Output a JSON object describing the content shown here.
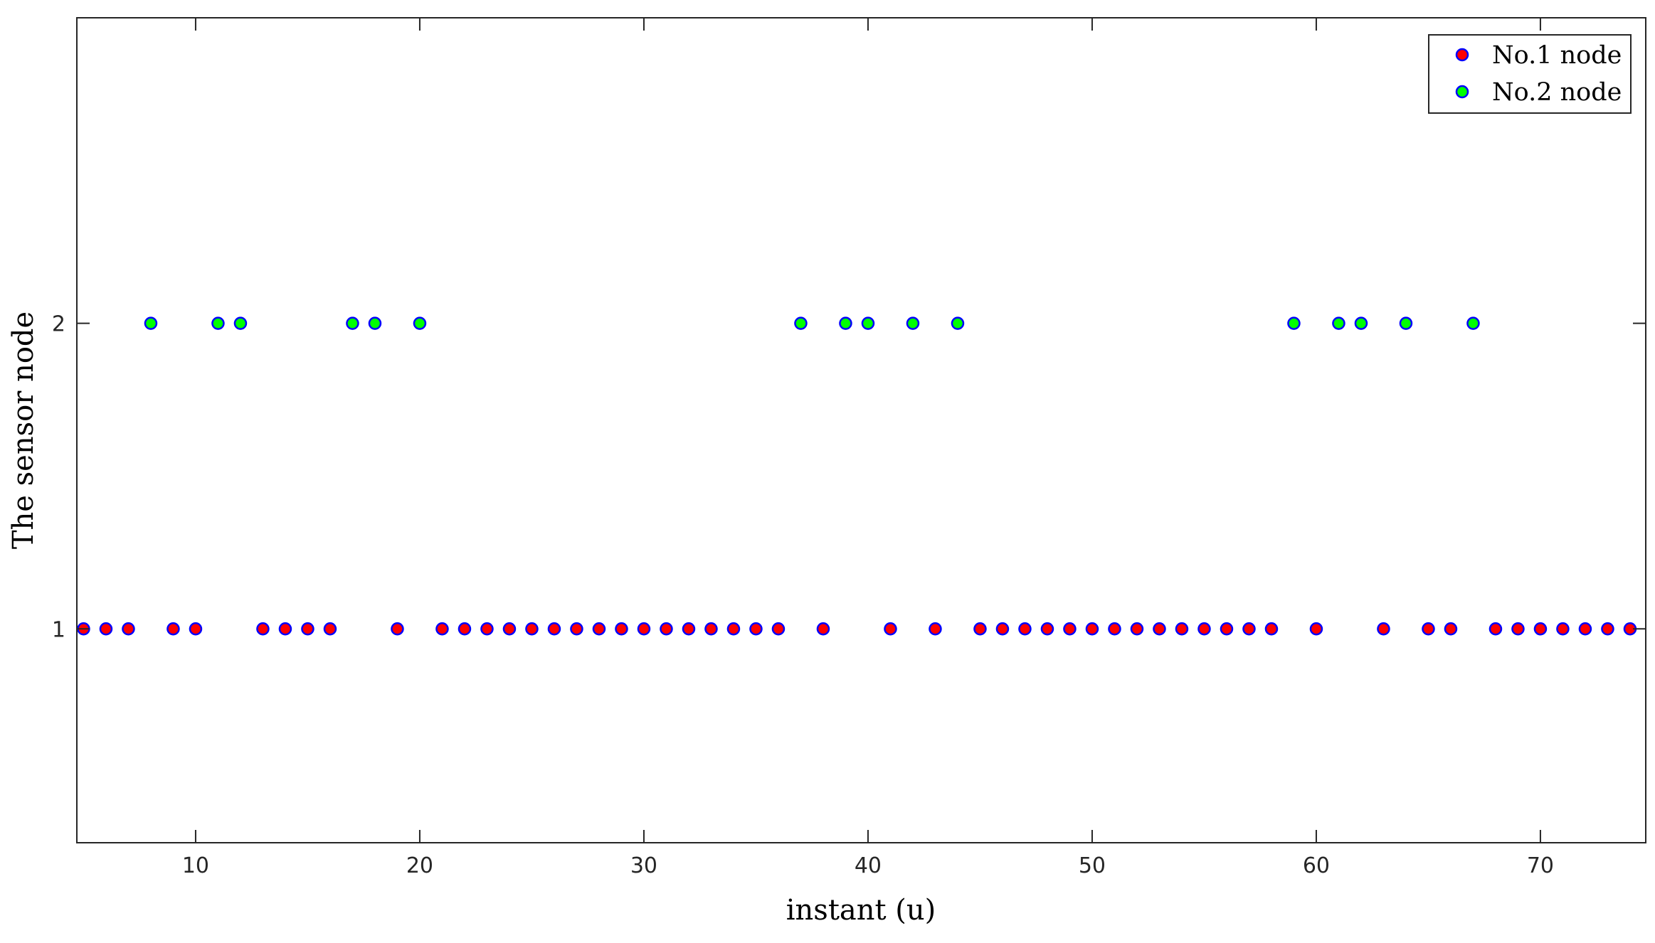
{
  "chart_data": {
    "type": "scatter",
    "xlabel": "instant (u)",
    "ylabel": "The sensor node",
    "xlim": [
      4.7,
      74.7
    ],
    "ylim": [
      0.3,
      3
    ],
    "x_ticks": [
      10,
      20,
      30,
      40,
      50,
      60,
      70
    ],
    "y_ticks": [
      1,
      2
    ],
    "grid": false,
    "legend_position": "top-right",
    "marker_edge_color": "#0000ff",
    "series": [
      {
        "name": "No.1 node",
        "color": "#ff0000",
        "points": [
          [
            5,
            1
          ],
          [
            6,
            1
          ],
          [
            7,
            1
          ],
          [
            9,
            1
          ],
          [
            10,
            1
          ],
          [
            13,
            1
          ],
          [
            14,
            1
          ],
          [
            15,
            1
          ],
          [
            16,
            1
          ],
          [
            19,
            1
          ],
          [
            21,
            1
          ],
          [
            22,
            1
          ],
          [
            23,
            1
          ],
          [
            24,
            1
          ],
          [
            25,
            1
          ],
          [
            26,
            1
          ],
          [
            27,
            1
          ],
          [
            28,
            1
          ],
          [
            29,
            1
          ],
          [
            30,
            1
          ],
          [
            31,
            1
          ],
          [
            32,
            1
          ],
          [
            33,
            1
          ],
          [
            34,
            1
          ],
          [
            35,
            1
          ],
          [
            36,
            1
          ],
          [
            38,
            1
          ],
          [
            41,
            1
          ],
          [
            43,
            1
          ],
          [
            45,
            1
          ],
          [
            46,
            1
          ],
          [
            47,
            1
          ],
          [
            48,
            1
          ],
          [
            49,
            1
          ],
          [
            50,
            1
          ],
          [
            51,
            1
          ],
          [
            52,
            1
          ],
          [
            53,
            1
          ],
          [
            54,
            1
          ],
          [
            55,
            1
          ],
          [
            56,
            1
          ],
          [
            57,
            1
          ],
          [
            58,
            1
          ],
          [
            60,
            1
          ],
          [
            63,
            1
          ],
          [
            65,
            1
          ],
          [
            66,
            1
          ],
          [
            68,
            1
          ],
          [
            69,
            1
          ],
          [
            70,
            1
          ],
          [
            71,
            1
          ],
          [
            72,
            1
          ],
          [
            73,
            1
          ],
          [
            74,
            1
          ]
        ]
      },
      {
        "name": "No.2 node",
        "color": "#00ff00",
        "points": [
          [
            8,
            2
          ],
          [
            11,
            2
          ],
          [
            12,
            2
          ],
          [
            17,
            2
          ],
          [
            18,
            2
          ],
          [
            20,
            2
          ],
          [
            37,
            2
          ],
          [
            39,
            2
          ],
          [
            40,
            2
          ],
          [
            42,
            2
          ],
          [
            44,
            2
          ],
          [
            59,
            2
          ],
          [
            61,
            2
          ],
          [
            62,
            2
          ],
          [
            64,
            2
          ],
          [
            67,
            2
          ]
        ]
      }
    ]
  }
}
